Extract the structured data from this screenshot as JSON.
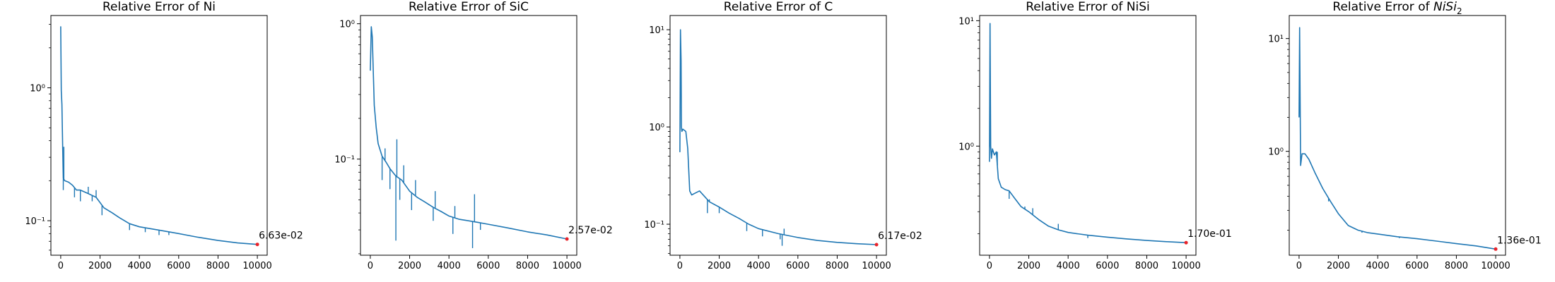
{
  "chart_data": [
    {
      "type": "line",
      "title": "Relative Error of Ni",
      "title_base": "Relative Error of Ni",
      "title_math_base": "",
      "title_math_sub": "",
      "y_scale": "log",
      "xlim": [
        -500,
        10500
      ],
      "ylim": [
        0.055,
        3.5
      ],
      "x_ticks": [
        0,
        2000,
        4000,
        6000,
        8000,
        10000
      ],
      "x_tick_labels": [
        "0",
        "2000",
        "4000",
        "6000",
        "8000",
        "10000"
      ],
      "y_ticks": [
        0.1,
        1
      ],
      "y_tick_labels": [
        "10⁻¹",
        "10⁰"
      ],
      "series": [
        {
          "color": "#1f77b4",
          "x": [
            0,
            30,
            60,
            100,
            130,
            200,
            400,
            600,
            800,
            1000,
            1400,
            1800,
            2200,
            2600,
            3000,
            3500,
            4000,
            5000,
            6000,
            7000,
            8000,
            9000,
            10000
          ],
          "y": [
            2.9,
            0.95,
            0.75,
            0.35,
            0.21,
            0.2,
            0.195,
            0.185,
            0.17,
            0.17,
            0.16,
            0.15,
            0.125,
            0.115,
            0.105,
            0.095,
            0.09,
            0.085,
            0.08,
            0.075,
            0.071,
            0.068,
            0.0663
          ],
          "spikes": [
            [
              130,
              0.17
            ],
            [
              160,
              0.36
            ],
            [
              700,
              0.15
            ],
            [
              1000,
              0.14
            ],
            [
              1400,
              0.18
            ],
            [
              1600,
              0.14
            ],
            [
              1800,
              0.17
            ],
            [
              2100,
              0.11
            ],
            [
              3500,
              0.085
            ],
            [
              4300,
              0.082
            ],
            [
              5000,
              0.078
            ],
            [
              5500,
              0.078
            ]
          ],
          "final": {
            "x": 10000,
            "y": 0.0663,
            "label": "6.63e-02"
          }
        }
      ]
    },
    {
      "type": "line",
      "title": "Relative Error of SiC",
      "title_base": "Relative Error of SiC",
      "title_math_base": "",
      "title_math_sub": "",
      "y_scale": "log",
      "xlim": [
        -500,
        10500
      ],
      "ylim": [
        0.0195,
        1.15
      ],
      "x_ticks": [
        0,
        2000,
        4000,
        6000,
        8000,
        10000
      ],
      "x_tick_labels": [
        "0",
        "2000",
        "4000",
        "6000",
        "8000",
        "10000"
      ],
      "y_ticks": [
        0.1,
        1
      ],
      "y_tick_labels": [
        "10⁻¹",
        "10⁰"
      ],
      "series": [
        {
          "color": "#1f77b4",
          "x": [
            0,
            50,
            100,
            200,
            300,
            400,
            600,
            800,
            1000,
            1300,
            1600,
            2000,
            2400,
            2800,
            3200,
            3600,
            4000,
            4500,
            5000,
            5500,
            6000,
            7000,
            8000,
            9000,
            10000
          ],
          "y": [
            0.45,
            0.95,
            0.8,
            0.25,
            0.17,
            0.13,
            0.105,
            0.095,
            0.085,
            0.075,
            0.07,
            0.058,
            0.052,
            0.048,
            0.044,
            0.041,
            0.038,
            0.036,
            0.035,
            0.034,
            0.033,
            0.031,
            0.029,
            0.0275,
            0.0257
          ],
          "spikes": [
            [
              600,
              0.07
            ],
            [
              750,
              0.12
            ],
            [
              1000,
              0.06
            ],
            [
              1300,
              0.025
            ],
            [
              1350,
              0.14
            ],
            [
              1500,
              0.05
            ],
            [
              1700,
              0.09
            ],
            [
              2100,
              0.042
            ],
            [
              2300,
              0.07
            ],
            [
              3200,
              0.035
            ],
            [
              3300,
              0.058
            ],
            [
              4200,
              0.028
            ],
            [
              4300,
              0.045
            ],
            [
              5200,
              0.022
            ],
            [
              5300,
              0.055
            ],
            [
              5600,
              0.03
            ]
          ],
          "final": {
            "x": 10000,
            "y": 0.0257,
            "label": "2.57e-02"
          }
        }
      ]
    },
    {
      "type": "line",
      "title": "Relative Error of C",
      "title_base": "Relative Error of C",
      "title_math_base": "",
      "title_math_sub": "",
      "y_scale": "log",
      "xlim": [
        -500,
        10500
      ],
      "ylim": [
        0.048,
        14
      ],
      "x_ticks": [
        0,
        2000,
        4000,
        6000,
        8000,
        10000
      ],
      "x_tick_labels": [
        "0",
        "2000",
        "4000",
        "6000",
        "8000",
        "10000"
      ],
      "y_ticks": [
        0.1,
        1,
        10
      ],
      "y_tick_labels": [
        "10⁻¹",
        "10⁰",
        "10¹"
      ],
      "series": [
        {
          "color": "#1f77b4",
          "x": [
            0,
            30,
            60,
            80,
            100,
            150,
            300,
            400,
            500,
            600,
            800,
            1000,
            1500,
            2000,
            2500,
            3000,
            3500,
            4000,
            5000,
            6000,
            7000,
            8000,
            9000,
            10000
          ],
          "y": [
            0.55,
            10,
            4.8,
            1.0,
            0.9,
            0.95,
            0.9,
            0.6,
            0.22,
            0.2,
            0.21,
            0.22,
            0.17,
            0.15,
            0.13,
            0.115,
            0.1,
            0.09,
            0.08,
            0.073,
            0.068,
            0.065,
            0.063,
            0.0617
          ],
          "spikes": [
            [
              1400,
              0.13
            ],
            [
              1500,
              0.18
            ],
            [
              2000,
              0.13
            ],
            [
              3400,
              0.085
            ],
            [
              4200,
              0.075
            ],
            [
              5100,
              0.07
            ],
            [
              5200,
              0.06
            ],
            [
              5300,
              0.09
            ]
          ],
          "final": {
            "x": 10000,
            "y": 0.0617,
            "label": "6.17e-02"
          }
        }
      ]
    },
    {
      "type": "line",
      "title": "Relative Error of NiSi",
      "title_base": "Relative Error of NiSi",
      "title_math_base": "",
      "title_math_sub": "",
      "y_scale": "log",
      "xlim": [
        -500,
        10500
      ],
      "ylim": [
        0.135,
        11
      ],
      "x_ticks": [
        0,
        2000,
        4000,
        6000,
        8000,
        10000
      ],
      "x_tick_labels": [
        "0",
        "2000",
        "4000",
        "6000",
        "8000",
        "10000"
      ],
      "y_ticks": [
        1,
        10
      ],
      "y_tick_labels": [
        "10⁰",
        "10¹"
      ],
      "series": [
        {
          "color": "#1f77b4",
          "x": [
            0,
            30,
            60,
            100,
            150,
            250,
            350,
            450,
            600,
            800,
            1000,
            1300,
            1600,
            2000,
            2500,
            3000,
            3500,
            4000,
            5000,
            6000,
            7000,
            8000,
            9000,
            10000
          ],
          "y": [
            0.75,
            9.5,
            1.0,
            0.8,
            0.95,
            0.85,
            0.9,
            0.55,
            0.47,
            0.45,
            0.44,
            0.38,
            0.33,
            0.3,
            0.26,
            0.23,
            0.215,
            0.205,
            0.195,
            0.188,
            0.182,
            0.177,
            0.173,
            0.17
          ],
          "spikes": [
            [
              400,
              0.9
            ],
            [
              1000,
              0.38
            ],
            [
              1800,
              0.33
            ],
            [
              2200,
              0.32
            ],
            [
              3500,
              0.24
            ],
            [
              5000,
              0.185
            ]
          ],
          "final": {
            "x": 10000,
            "y": 0.17,
            "label": "1.70e-01"
          }
        }
      ]
    },
    {
      "type": "line",
      "title": "Relative Error of NiSi₂",
      "title_base": "Relative Error of ",
      "title_math_base": "NiSi",
      "title_math_sub": "2",
      "y_scale": "log",
      "xlim": [
        -500,
        10500
      ],
      "ylim": [
        0.12,
        16
      ],
      "x_ticks": [
        0,
        2000,
        4000,
        6000,
        8000,
        10000
      ],
      "x_tick_labels": [
        "0",
        "2000",
        "4000",
        "6000",
        "8000",
        "10000"
      ],
      "y_ticks": [
        1,
        10
      ],
      "y_tick_labels": [
        "10⁰",
        "10¹"
      ],
      "series": [
        {
          "color": "#1f77b4",
          "x": [
            0,
            30,
            80,
            150,
            300,
            500,
            800,
            1200,
            1600,
            2000,
            2500,
            3000,
            3500,
            4000,
            5000,
            6000,
            7000,
            8000,
            9000,
            10000
          ],
          "y": [
            2.0,
            12.5,
            0.75,
            0.95,
            0.95,
            0.85,
            0.65,
            0.47,
            0.36,
            0.28,
            0.22,
            0.2,
            0.19,
            0.185,
            0.175,
            0.168,
            0.16,
            0.152,
            0.145,
            0.136
          ],
          "spikes": [
            [
              1500,
              0.36
            ],
            [
              3200,
              0.19
            ],
            [
              5100,
              0.17
            ]
          ],
          "final": {
            "x": 10000,
            "y": 0.136,
            "label": "1.36e-01"
          }
        }
      ]
    }
  ]
}
